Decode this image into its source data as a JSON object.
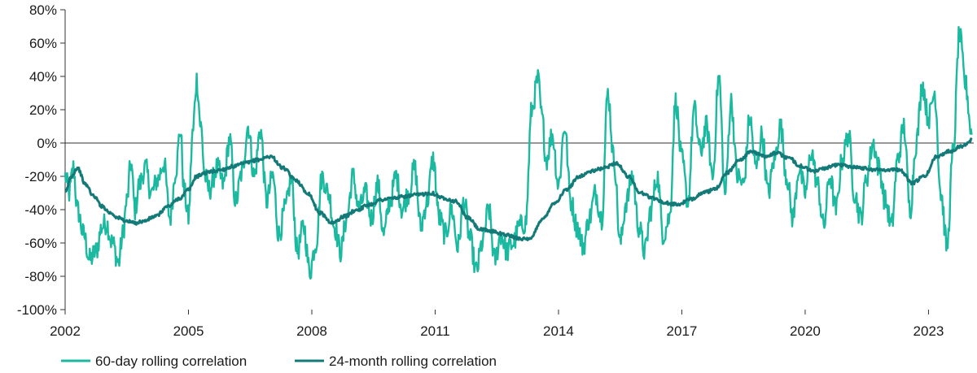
{
  "chart_data": {
    "type": "line",
    "title": "",
    "xlabel": "",
    "ylabel": "",
    "xlim": [
      2002,
      2024.1
    ],
    "ylim": [
      -100,
      80
    ],
    "y_ticks": [
      80,
      60,
      40,
      20,
      0,
      -20,
      -40,
      -60,
      -80,
      -100
    ],
    "y_tick_labels": [
      "80%",
      "60%",
      "40%",
      "20%",
      "0%",
      "-20%",
      "-40%",
      "-60%",
      "-80%",
      "-100%"
    ],
    "x_ticks": [
      2002,
      2005,
      2008,
      2011,
      2014,
      2017,
      2020,
      2023
    ],
    "x_tick_labels": [
      "2002",
      "2005",
      "2008",
      "2011",
      "2014",
      "2017",
      "2020",
      "2023"
    ],
    "zero_line": true,
    "grid": false,
    "legend_position": "bottom-left",
    "series": [
      {
        "name": "60-day rolling correlation",
        "color": "#1ab9a0",
        "x": [
          2002.0,
          2002.1,
          2002.2,
          2002.3,
          2002.45,
          2002.6,
          2002.75,
          2002.9,
          2003.0,
          2003.15,
          2003.3,
          2003.4,
          2003.5,
          2003.6,
          2003.7,
          2003.8,
          2003.95,
          2004.1,
          2004.25,
          2004.4,
          2004.55,
          2004.7,
          2004.8,
          2004.9,
          2005.0,
          2005.1,
          2005.2,
          2005.3,
          2005.4,
          2005.5,
          2005.7,
          2005.85,
          2006.0,
          2006.15,
          2006.3,
          2006.45,
          2006.6,
          2006.75,
          2006.9,
          2007.05,
          2007.2,
          2007.35,
          2007.5,
          2007.65,
          2007.8,
          2007.95,
          2008.1,
          2008.25,
          2008.4,
          2008.55,
          2008.7,
          2008.85,
          2009.0,
          2009.15,
          2009.3,
          2009.45,
          2009.6,
          2009.75,
          2009.9,
          2010.05,
          2010.2,
          2010.35,
          2010.5,
          2010.65,
          2010.8,
          2010.95,
          2011.1,
          2011.25,
          2011.4,
          2011.55,
          2011.7,
          2011.85,
          2012.0,
          2012.15,
          2012.3,
          2012.45,
          2012.6,
          2012.75,
          2012.9,
          2013.05,
          2013.2,
          2013.35,
          2013.5,
          2013.6,
          2013.7,
          2013.85,
          2014.0,
          2014.15,
          2014.3,
          2014.45,
          2014.6,
          2014.75,
          2014.9,
          2015.05,
          2015.2,
          2015.35,
          2015.5,
          2015.65,
          2015.8,
          2015.95,
          2016.1,
          2016.25,
          2016.4,
          2016.55,
          2016.7,
          2016.85,
          2017.0,
          2017.15,
          2017.3,
          2017.45,
          2017.6,
          2017.75,
          2017.9,
          2018.05,
          2018.2,
          2018.35,
          2018.5,
          2018.65,
          2018.8,
          2018.95,
          2019.1,
          2019.25,
          2019.4,
          2019.55,
          2019.7,
          2019.85,
          2020.0,
          2020.15,
          2020.3,
          2020.45,
          2020.6,
          2020.75,
          2020.9,
          2021.05,
          2021.2,
          2021.35,
          2021.5,
          2021.65,
          2021.8,
          2021.95,
          2022.1,
          2022.25,
          2022.4,
          2022.55,
          2022.7,
          2022.85,
          2023.0,
          2023.15,
          2023.3,
          2023.45,
          2023.6,
          2023.75,
          2023.9,
          2024.05
        ],
        "values": [
          -20,
          -30,
          -15,
          -40,
          -55,
          -70,
          -65,
          -50,
          -48,
          -60,
          -72,
          -55,
          -35,
          -12,
          -40,
          -25,
          -15,
          -30,
          -22,
          -12,
          -45,
          -15,
          8,
          -30,
          -45,
          5,
          38,
          10,
          -20,
          -28,
          -15,
          -25,
          2,
          -35,
          -18,
          10,
          -20,
          8,
          -35,
          -20,
          -55,
          -40,
          -22,
          -65,
          -50,
          -77,
          -60,
          -20,
          -30,
          -50,
          -65,
          -45,
          -20,
          -40,
          -30,
          -45,
          -25,
          -55,
          -35,
          -20,
          -40,
          -30,
          -15,
          -50,
          -35,
          -10,
          -45,
          -55,
          -40,
          -62,
          -35,
          -58,
          -77,
          -60,
          -40,
          -70,
          -55,
          -65,
          -60,
          -50,
          -48,
          20,
          38,
          15,
          -10,
          5,
          -25,
          10,
          -35,
          -50,
          -62,
          -45,
          -30,
          -45,
          30,
          -10,
          -60,
          -35,
          -20,
          -50,
          -65,
          -40,
          -20,
          -55,
          -45,
          25,
          -10,
          -35,
          20,
          -5,
          10,
          -20,
          40,
          -30,
          25,
          -20,
          -25,
          15,
          -15,
          5,
          -30,
          -10,
          10,
          -20,
          -45,
          -15,
          -30,
          -5,
          -25,
          -50,
          -20,
          -40,
          -10,
          5,
          -30,
          -45,
          -20,
          0,
          -15,
          -35,
          -50,
          -10,
          10,
          -40,
          0,
          35,
          15,
          30,
          -30,
          -62,
          -5,
          65,
          35,
          5
        ],
        "noise": 7
      },
      {
        "name": "24-month rolling correlation",
        "color": "#137a78",
        "x": [
          2002.0,
          2002.15,
          2002.3,
          2002.5,
          2002.7,
          2002.9,
          2003.1,
          2003.3,
          2003.5,
          2003.7,
          2003.9,
          2004.2,
          2004.5,
          2004.8,
          2005.0,
          2005.2,
          2005.4,
          2005.6,
          2005.8,
          2006.1,
          2006.4,
          2006.7,
          2007.0,
          2007.3,
          2007.6,
          2007.9,
          2008.2,
          2008.5,
          2008.8,
          2009.1,
          2009.4,
          2009.7,
          2010.0,
          2010.3,
          2010.6,
          2010.9,
          2011.2,
          2011.5,
          2011.8,
          2012.1,
          2012.4,
          2012.7,
          2013.0,
          2013.3,
          2013.6,
          2013.9,
          2014.2,
          2014.5,
          2014.8,
          2015.1,
          2015.4,
          2015.7,
          2016.0,
          2016.3,
          2016.6,
          2016.9,
          2017.2,
          2017.5,
          2017.8,
          2018.1,
          2018.4,
          2018.7,
          2019.0,
          2019.3,
          2019.6,
          2019.9,
          2020.2,
          2020.5,
          2020.8,
          2021.1,
          2021.4,
          2021.7,
          2022.0,
          2022.3,
          2022.6,
          2022.9,
          2023.2,
          2023.5,
          2023.8,
          2024.05
        ],
        "values": [
          -30,
          -20,
          -15,
          -25,
          -32,
          -38,
          -42,
          -45,
          -47,
          -48,
          -47,
          -44,
          -38,
          -33,
          -28,
          -20,
          -18,
          -17,
          -16,
          -14,
          -12,
          -10,
          -8,
          -15,
          -22,
          -30,
          -42,
          -48,
          -44,
          -40,
          -37,
          -34,
          -33,
          -32,
          -31,
          -30,
          -33,
          -35,
          -45,
          -52,
          -53,
          -55,
          -57,
          -58,
          -46,
          -36,
          -28,
          -20,
          -17,
          -15,
          -12,
          -20,
          -30,
          -33,
          -36,
          -37,
          -34,
          -30,
          -28,
          -18,
          -10,
          -5,
          -8,
          -6,
          -9,
          -14,
          -17,
          -15,
          -13,
          -14,
          -15,
          -16,
          -16,
          -16,
          -24,
          -20,
          -8,
          -5,
          -2,
          2
        ],
        "noise": 1
      }
    ]
  }
}
